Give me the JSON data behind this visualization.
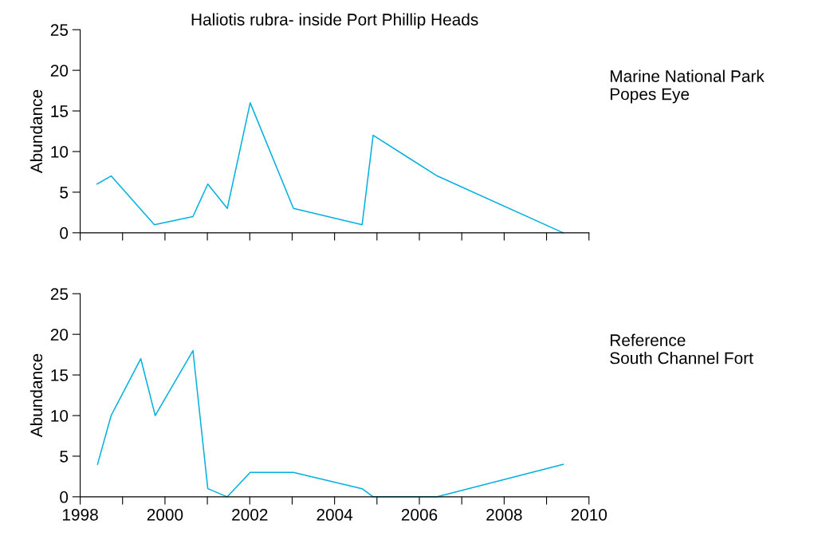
{
  "chart_data": [
    {
      "type": "line",
      "title": "Haliotis rubra- inside Port Phillip Heads",
      "annotations": [
        "Marine National Park\nPopes Eye"
      ],
      "ylabel": "Abundance",
      "series": [
        {
          "color": "#00b0e0",
          "x": [
            1998.4,
            1998.73,
            1999.75,
            2000.66,
            2001.01,
            2001.47,
            2002.01,
            2003.03,
            2004.65,
            2004.91,
            2006.42,
            2009.39
          ],
          "values": [
            6,
            7,
            1,
            2,
            6,
            3,
            16,
            3,
            1,
            12,
            7,
            0
          ]
        }
      ],
      "xlim": [
        1998,
        2010
      ],
      "xticks": [
        {
          "value": 1998,
          "label": null
        },
        {
          "value": 1999,
          "label": null
        },
        {
          "value": 2000,
          "label": null
        },
        {
          "value": 2001,
          "label": null
        },
        {
          "value": 2002,
          "label": null
        },
        {
          "value": 2003,
          "label": null
        },
        {
          "value": 2004,
          "label": null
        },
        {
          "value": 2005,
          "label": null
        },
        {
          "value": 2006,
          "label": null
        },
        {
          "value": 2007,
          "label": null
        },
        {
          "value": 2008,
          "label": null
        },
        {
          "value": 2009,
          "label": null
        },
        {
          "value": 2010,
          "label": null
        }
      ],
      "ylim": [
        0,
        25
      ],
      "yticks": [
        0,
        5,
        10,
        15,
        20,
        25
      ],
      "tick_labels": "y",
      "grid": false,
      "legend": false
    },
    {
      "type": "line",
      "annotations": [
        "Reference\nSouth Channel Fort"
      ],
      "ylabel": "Abundance",
      "series": [
        {
          "color": "#00b0e0",
          "x": [
            1998.41,
            1998.73,
            1999.43,
            1999.77,
            2000.66,
            2001.01,
            2001.47,
            2002.01,
            2003.03,
            2004.65,
            2004.91,
            2006.42,
            2009.39
          ],
          "values": [
            4,
            10,
            17,
            10,
            18,
            1,
            0,
            3,
            3,
            1,
            0,
            0,
            4
          ]
        }
      ],
      "xlim": [
        1998,
        2010
      ],
      "xticks": [
        1998,
        {
          "value": 1999,
          "label": null
        },
        2000,
        {
          "value": 2001,
          "label": null
        },
        2002,
        {
          "value": 2003,
          "label": null
        },
        2004,
        {
          "value": 2005,
          "label": null
        },
        2006,
        {
          "value": 2007,
          "label": null
        },
        2008,
        {
          "value": 2009,
          "label": null
        },
        2010
      ],
      "ylim": [
        0,
        25
      ],
      "yticks": [
        0,
        5,
        10,
        15,
        20,
        25
      ],
      "grid": false,
      "legend": false
    }
  ]
}
